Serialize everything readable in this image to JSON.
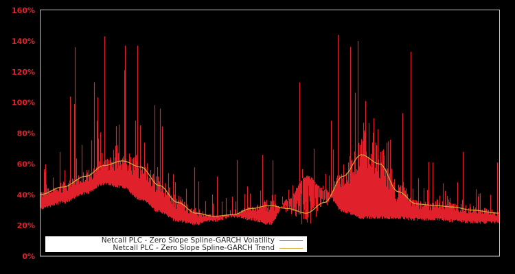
{
  "chart_data": {
    "type": "line",
    "title": "",
    "xlabel": "",
    "ylabel": "",
    "ylim": [
      0,
      160
    ],
    "y_ticks": [
      "0%",
      "20%",
      "40%",
      "60%",
      "80%",
      "100%",
      "120%",
      "140%",
      "160%"
    ],
    "x_ticks": [],
    "grid": false,
    "background": "#000000",
    "legend_position": "lower left",
    "series": [
      {
        "name": "Netcall PLC - Zero Slope Spline-GARCH Volatility",
        "color": "#e0202a",
        "description": "Daily conditional volatility, noisy with spikes; floor follows trend",
        "x": [
          0,
          0.05,
          0.1,
          0.14,
          0.18,
          0.22,
          0.26,
          0.3,
          0.34,
          0.38,
          0.42,
          0.46,
          0.5,
          0.54,
          0.58,
          0.62,
          0.66,
          0.7,
          0.74,
          0.78,
          0.82,
          0.86,
          0.9,
          0.94,
          1.0
        ],
        "floor": [
          32,
          36,
          42,
          48,
          46,
          38,
          30,
          24,
          22,
          24,
          27,
          25,
          22,
          38,
          53,
          44,
          30,
          26,
          26,
          26,
          25,
          25,
          24,
          23,
          23
        ],
        "spikes": [
          {
            "x": 0.076,
            "y": 136
          },
          {
            "x": 0.141,
            "y": 143
          },
          {
            "x": 0.186,
            "y": 137
          },
          {
            "x": 0.212,
            "y": 137
          },
          {
            "x": 0.565,
            "y": 113
          },
          {
            "x": 0.648,
            "y": 144
          },
          {
            "x": 0.692,
            "y": 140
          },
          {
            "x": 0.807,
            "y": 133
          },
          {
            "x": 0.995,
            "y": 61
          }
        ]
      },
      {
        "name": "Netcall PLC - Zero Slope Spline-GARCH Trend",
        "color": "#d4a830",
        "x": [
          0,
          0.05,
          0.1,
          0.14,
          0.18,
          0.22,
          0.26,
          0.3,
          0.34,
          0.38,
          0.42,
          0.46,
          0.5,
          0.54,
          0.58,
          0.62,
          0.66,
          0.7,
          0.74,
          0.78,
          0.82,
          0.86,
          0.9,
          0.94,
          1.0
        ],
        "values": [
          40,
          45,
          52,
          59,
          62,
          58,
          46,
          35,
          28,
          26,
          27,
          31,
          33,
          31,
          28,
          35,
          52,
          66,
          60,
          42,
          34,
          33,
          32,
          30,
          28
        ]
      }
    ]
  },
  "legend": {
    "items": [
      {
        "label": "Netcall PLC - Zero Slope Spline-GARCH Volatility",
        "color": "#e0202a"
      },
      {
        "label": "Netcall PLC - Zero Slope Spline-GARCH Trend",
        "color": "#d4a830"
      }
    ]
  }
}
